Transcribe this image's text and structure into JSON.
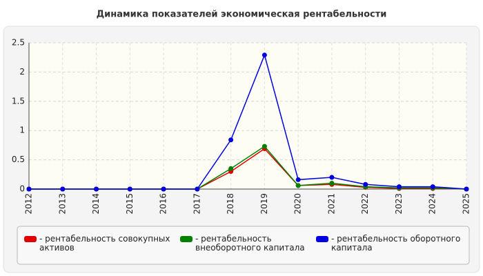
{
  "chart_data": {
    "type": "line",
    "title": "Динамика показателей экономическая рентабельности",
    "categories": [
      "2012",
      "2013",
      "2014",
      "2015",
      "2016",
      "2017",
      "2018",
      "2019",
      "2020",
      "2021",
      "2022",
      "2023",
      "2024",
      "2025"
    ],
    "series": [
      {
        "name": "- рентабельность совокупных активов",
        "color": "#e00000",
        "values": [
          0,
          0,
          0,
          0,
          0,
          0,
          0.3,
          0.69,
          0.06,
          0.08,
          0.03,
          0.01,
          0.01,
          0
        ]
      },
      {
        "name": "- рентабельность внеоборотного капитала",
        "color": "#008000",
        "values": [
          0,
          0,
          0,
          0,
          0,
          0,
          0.35,
          0.73,
          0.06,
          0.1,
          0.04,
          0.02,
          0.02,
          0
        ]
      },
      {
        "name": "- рентабельность оборотного капитала",
        "color": "#0000e0",
        "values": [
          0,
          0,
          0,
          0,
          0,
          0,
          0.84,
          2.29,
          0.16,
          0.2,
          0.08,
          0.04,
          0.04,
          0
        ]
      }
    ],
    "ylim": [
      0,
      2.5
    ],
    "yticks": [
      0,
      0.5,
      1,
      1.5,
      2,
      2.5
    ],
    "grid": true
  }
}
